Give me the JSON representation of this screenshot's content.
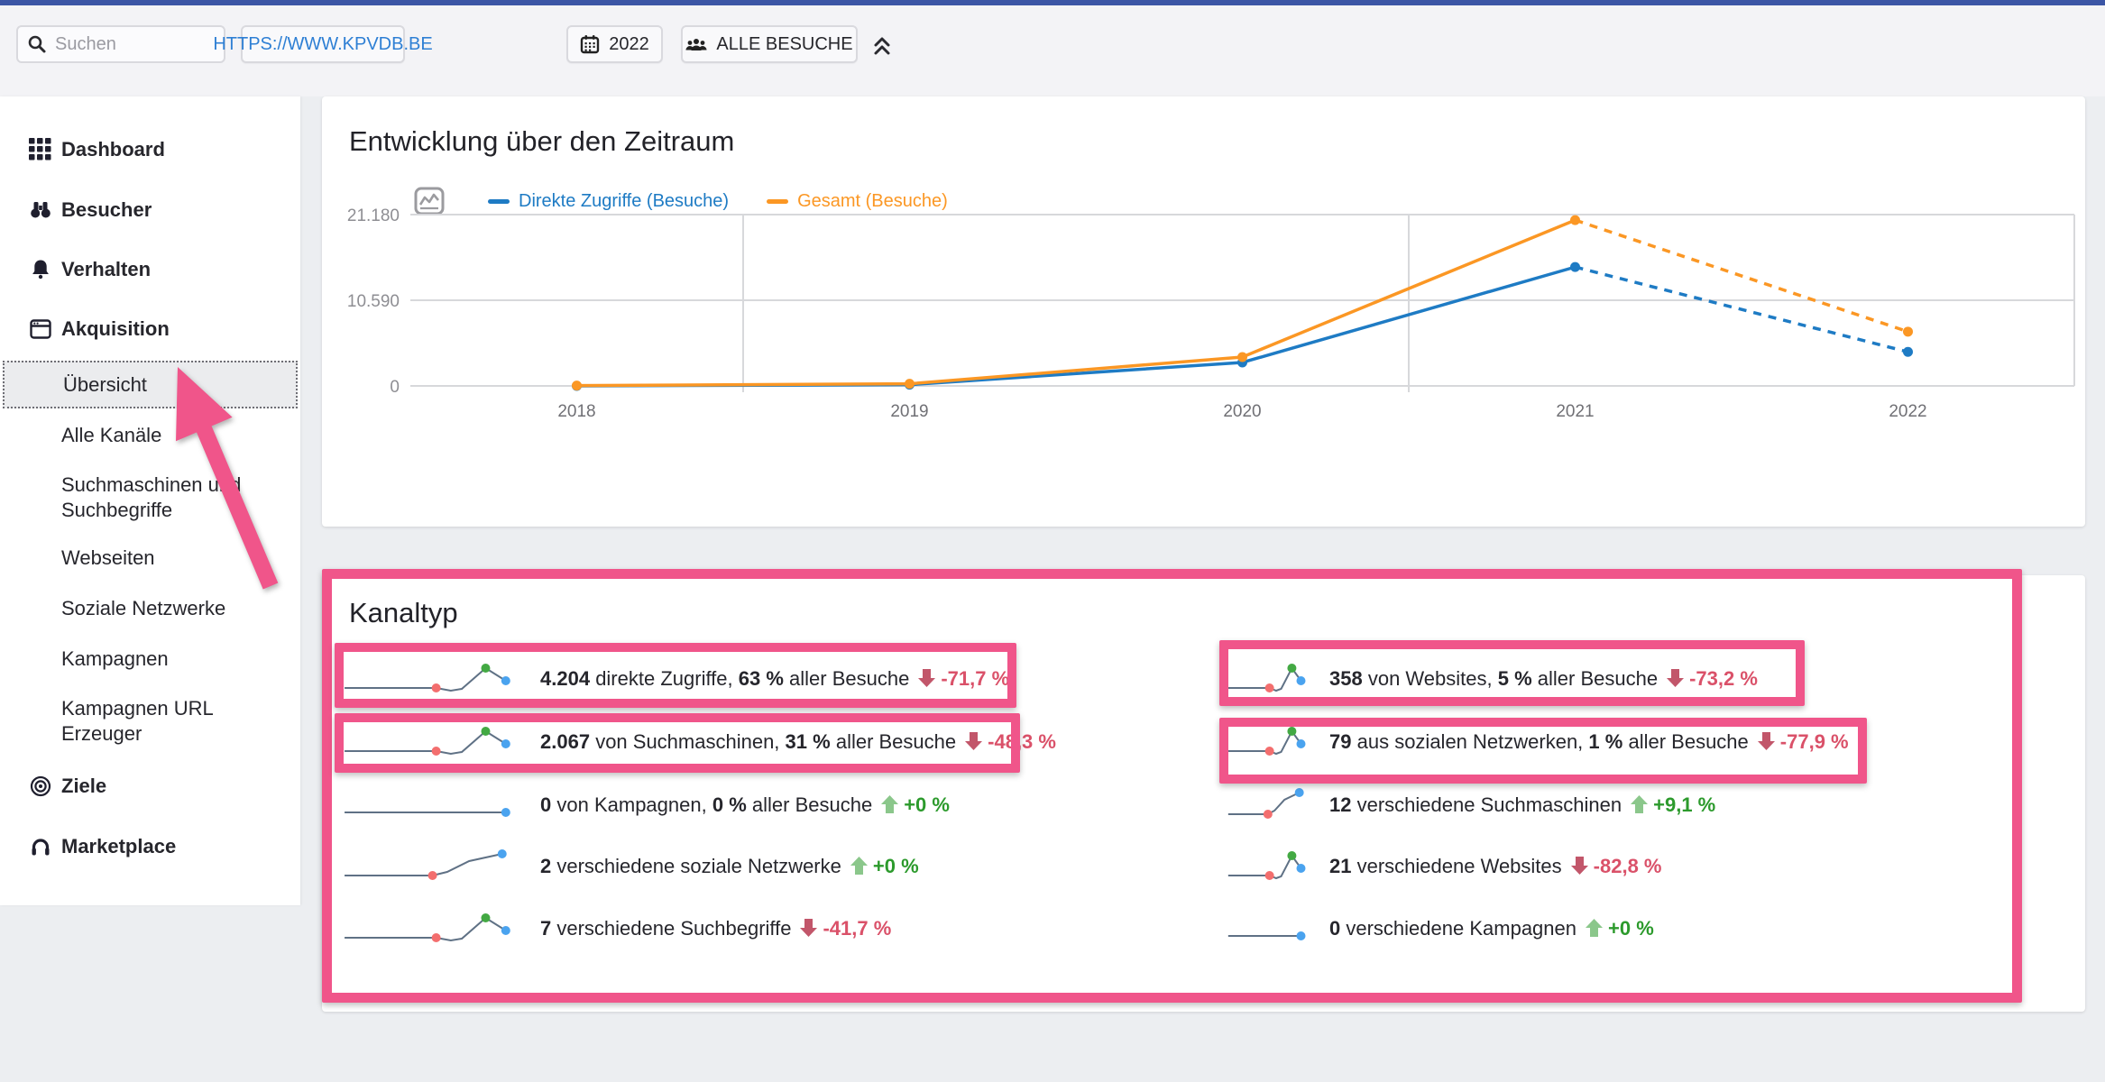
{
  "topbar": {
    "search": {
      "placeholder": "Suchen"
    },
    "site_button": {
      "label": "HTTPS://WWW.KPVDB.BE"
    },
    "period_button": {
      "label": "2022"
    },
    "segment_button": {
      "label": "ALLE BESUCHE"
    }
  },
  "sidebar": {
    "items": [
      {
        "label": "Dashboard",
        "icon": "dashboard-grid",
        "level": "main"
      },
      {
        "label": "Besucher",
        "icon": "binoculars",
        "level": "main"
      },
      {
        "label": "Verhalten",
        "icon": "bell",
        "level": "main"
      },
      {
        "label": "Akquisition",
        "icon": "browser-window",
        "level": "main"
      },
      {
        "label": "Übersicht",
        "level": "sub",
        "selected": true
      },
      {
        "label": "Alle Kanäle",
        "level": "sub"
      },
      {
        "label": "Suchmaschinen und Suchbegriffe",
        "level": "sub"
      },
      {
        "label": "Webseiten",
        "level": "sub"
      },
      {
        "label": "Soziale Netzwerke",
        "level": "sub"
      },
      {
        "label": "Kampagnen",
        "level": "sub"
      },
      {
        "label": "Kampagnen URL Erzeuger",
        "level": "sub"
      },
      {
        "label": "Ziele",
        "icon": "target",
        "level": "main"
      },
      {
        "label": "Marketplace",
        "icon": "marketplace",
        "level": "main"
      }
    ]
  },
  "evolution": {
    "title": "Entwicklung über den Zeitraum",
    "legend": [
      {
        "label": "Direkte Zugriffe (Besuche)",
        "color": "#1e7bc4"
      },
      {
        "label": "Gesamt (Besuche)",
        "color": "#fb9724"
      }
    ]
  },
  "chart_data": {
    "type": "line",
    "title": "Entwicklung über den Zeitraum",
    "x": [
      "2018",
      "2019",
      "2020",
      "2021",
      "2022"
    ],
    "series": [
      {
        "name": "Direkte Zugriffe (Besuche)",
        "color": "#1e7bc4",
        "values": [
          0,
          150,
          2900,
          14700,
          4204
        ]
      },
      {
        "name": "Gesamt (Besuche)",
        "color": "#fb9724",
        "values": [
          44,
          264,
          3570,
          20500,
          6708
        ]
      }
    ],
    "ylim": [
      0,
      21180
    ],
    "y_ticks": [
      "21.180",
      "10.590",
      "0"
    ],
    "last_segment_dashed": true,
    "grid": "horizontal-and-partial-vertical",
    "legend_position": "top"
  },
  "kanaltyp": {
    "title": "Kanaltyp",
    "left_rows": [
      {
        "value": "4.204",
        "label": "direkte Zugriffe,",
        "share": "63 %",
        "share_suffix": "aller Besuche",
        "trend": "-71,7 %",
        "trend_dir": "down",
        "spark": "peak",
        "highlighted": true
      },
      {
        "value": "2.067",
        "label": "von Suchmaschinen,",
        "share": "31 %",
        "share_suffix": "aller Besuche",
        "trend": "-48,3 %",
        "trend_dir": "down",
        "spark": "peak",
        "highlighted": true
      },
      {
        "value": "0",
        "label": "von Kampagnen,",
        "share": "0 %",
        "share_suffix": "aller Besuche",
        "trend": "+0 %",
        "trend_dir": "up",
        "spark": "flat",
        "highlighted": false
      },
      {
        "value": "2",
        "label": "verschiedene soziale Netzwerke",
        "trend": "+0 %",
        "trend_dir": "up",
        "spark": "rise",
        "highlighted": false
      },
      {
        "value": "7",
        "label": "verschiedene Suchbegriffe",
        "trend": "-41,7 %",
        "trend_dir": "down",
        "spark": "peak",
        "highlighted": false
      }
    ],
    "right_rows": [
      {
        "value": "358",
        "label": "von Websites,",
        "share": "5 %",
        "share_suffix": "aller Besuche",
        "trend": "-73,2 %",
        "trend_dir": "down",
        "spark": "peak",
        "highlighted": true
      },
      {
        "value": "79",
        "label": "aus sozialen Netzwerken,",
        "share": "1 %",
        "share_suffix": "aller Besuche",
        "trend": "-77,9 %",
        "trend_dir": "down",
        "spark": "peak",
        "highlighted": true
      },
      {
        "value": "12",
        "label": "verschiedene Suchmaschinen",
        "trend": "+9,1 %",
        "trend_dir": "up",
        "spark": "rise",
        "highlighted": false
      },
      {
        "value": "21",
        "label": "verschiedene Websites",
        "trend": "-82,8 %",
        "trend_dir": "down",
        "spark": "peak",
        "highlighted": false
      },
      {
        "value": "0",
        "label": "verschiedene Kampagnen",
        "trend": "+0 %",
        "trend_dir": "up",
        "spark": "flat",
        "highlighted": false
      }
    ]
  },
  "colors": {
    "annotation_pink": "#f0558a",
    "trend_up_text": "#2c9a2c",
    "trend_down_text": "#da5169",
    "trend_up_arrow": "#8bc78b",
    "trend_down_arrow": "#c2566a",
    "spark_line": "#5f7185",
    "spark_dot_start": "#f36e6e",
    "spark_dot_peak": "#43a943",
    "spark_dot_end": "#4aa3ef",
    "series_blue": "#1e7bc4",
    "series_orange": "#fb9724",
    "top_strip_blue": "#3b55a5"
  }
}
